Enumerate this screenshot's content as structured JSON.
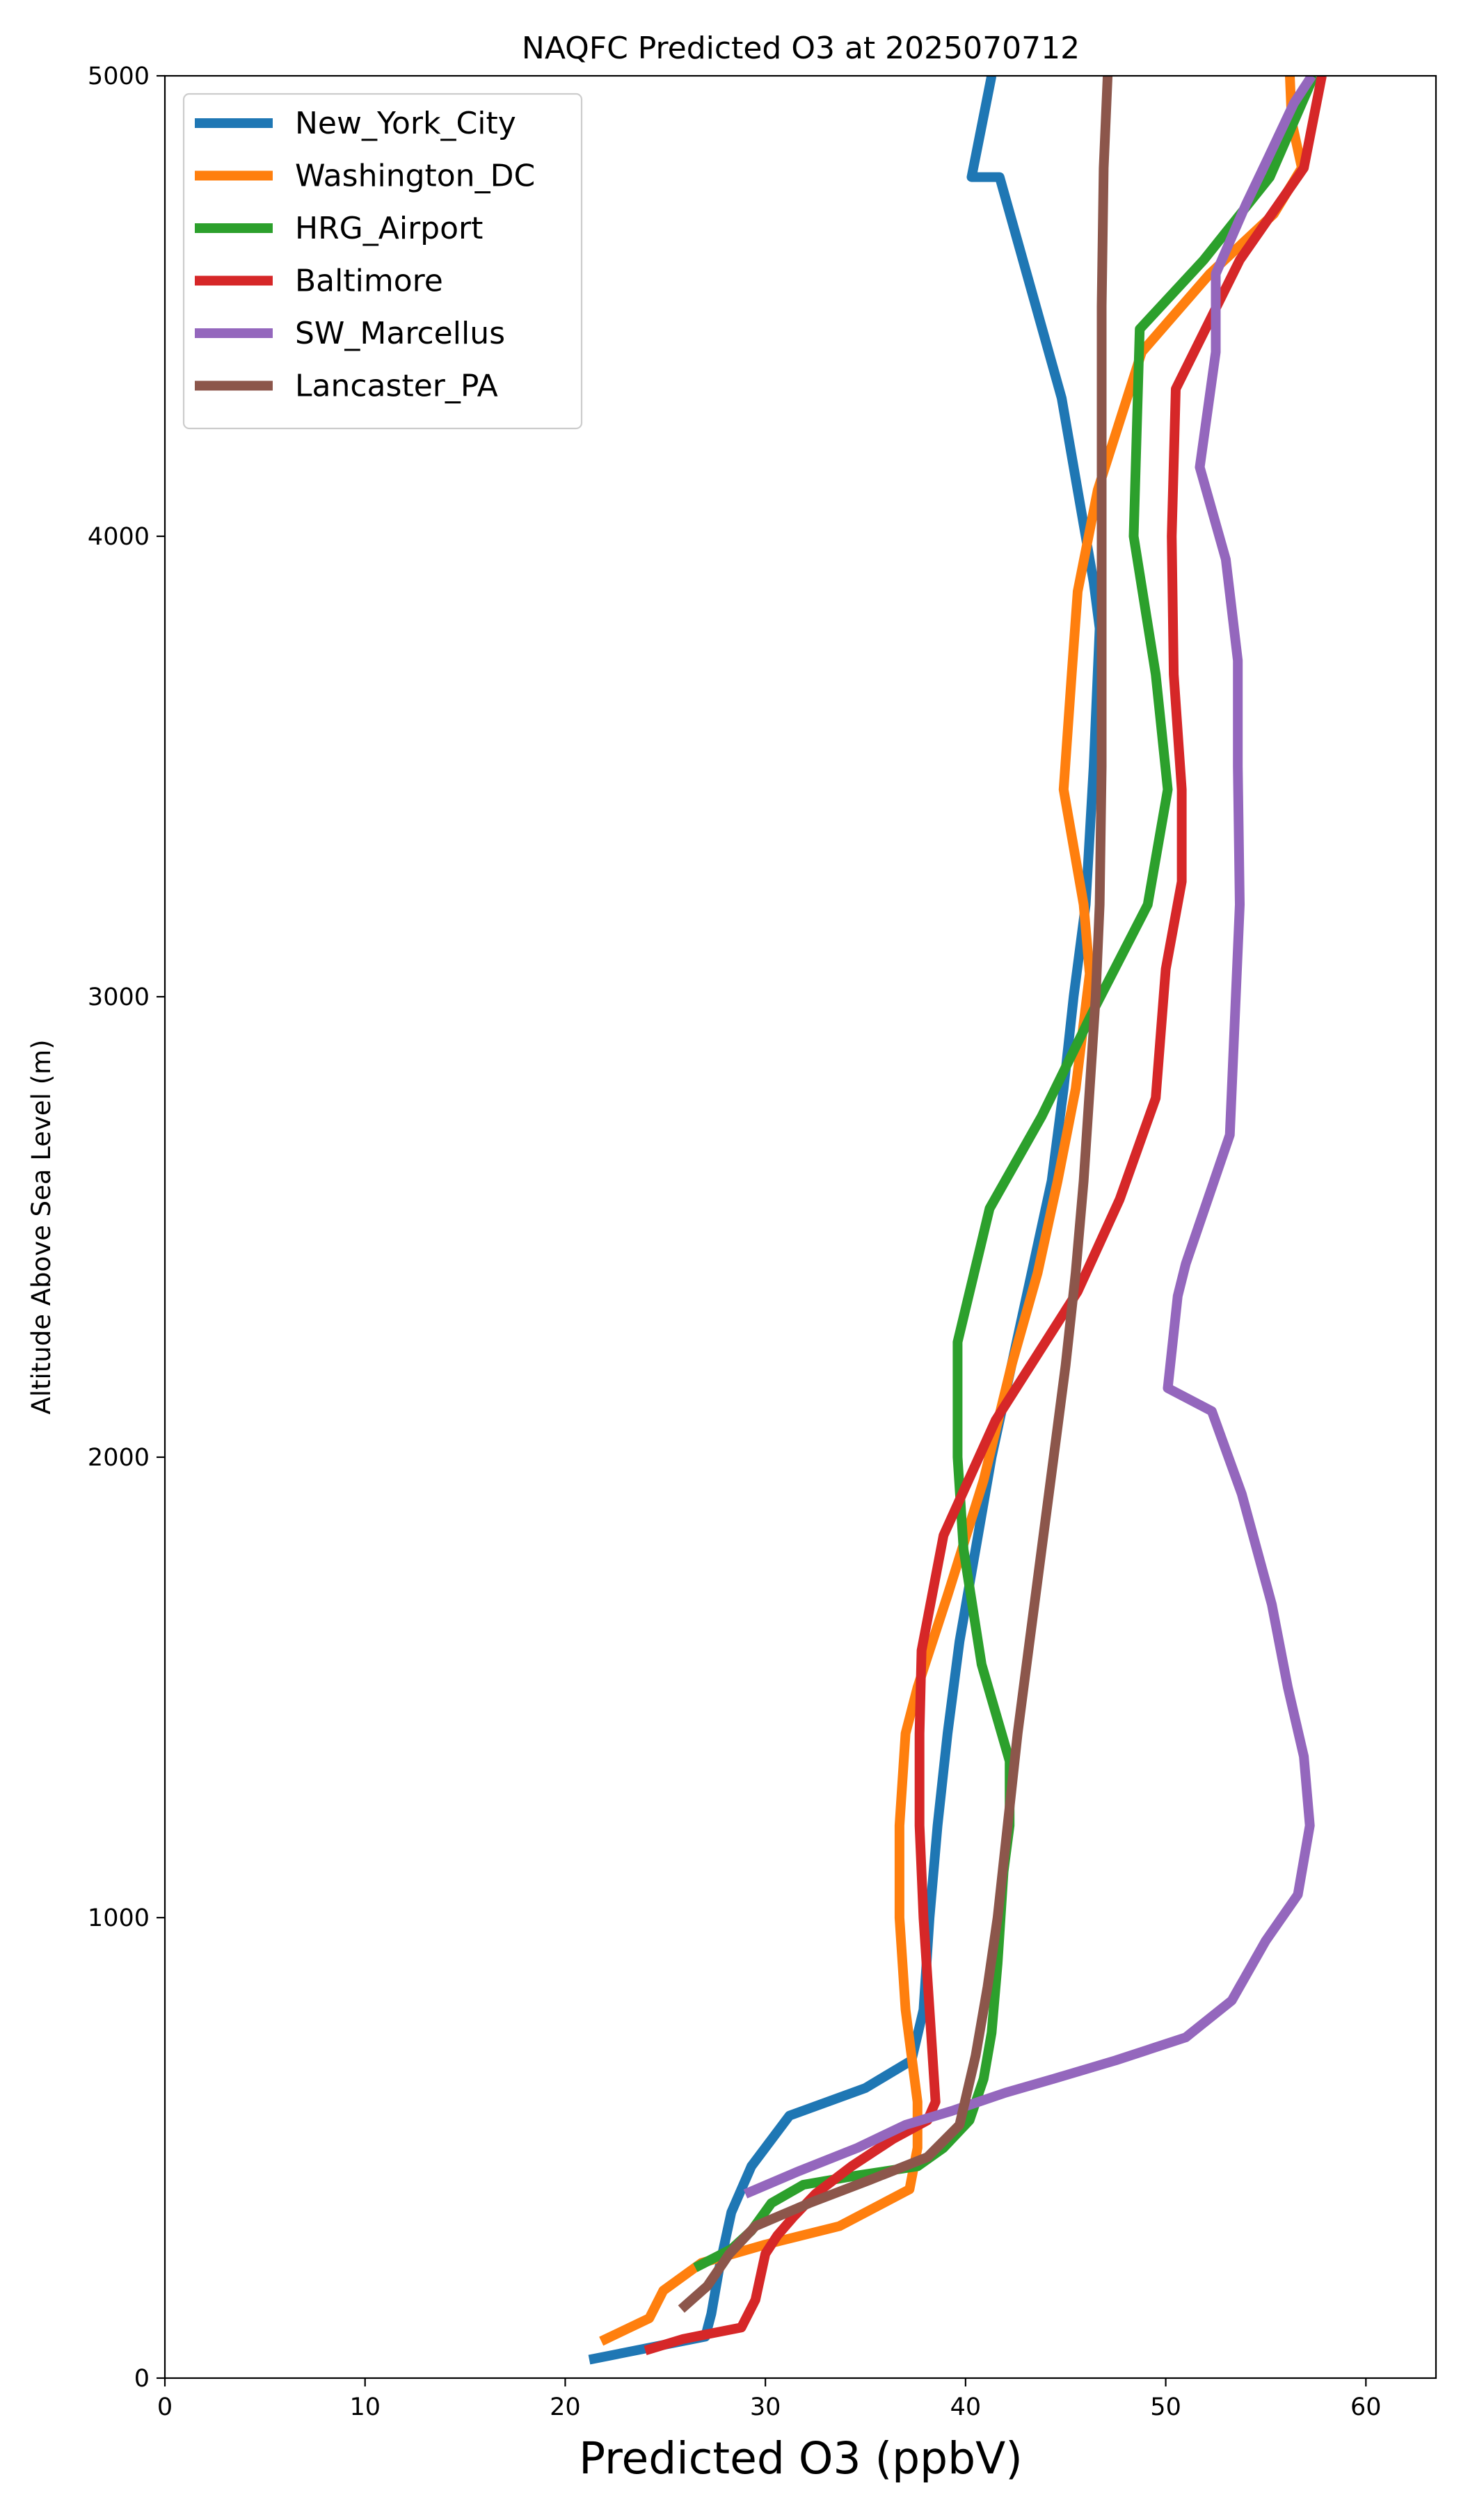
{
  "chart_data": {
    "type": "line",
    "title": "NAQFC Predicted O3 at 2025070712",
    "xlabel": "Predicted O3 (ppbV)",
    "ylabel": "Altitude Above Sea Level (m)",
    "xlim": [
      0,
      63.5
    ],
    "ylim": [
      0,
      5000
    ],
    "x_ticks": [
      0,
      10,
      20,
      30,
      40,
      50,
      60
    ],
    "y_ticks": [
      0,
      1000,
      2000,
      3000,
      4000,
      5000
    ],
    "grid": false,
    "legend_position": "upper left",
    "series": [
      {
        "name": "New_York_City",
        "color": "#1f77b4",
        "points": [
          [
            21.2,
            40
          ],
          [
            27,
            90
          ],
          [
            27.3,
            140
          ],
          [
            27.7,
            240
          ],
          [
            28.3,
            360
          ],
          [
            29.3,
            460
          ],
          [
            31.2,
            570
          ],
          [
            35,
            630
          ],
          [
            37.3,
            690
          ],
          [
            37.9,
            800
          ],
          [
            38.2,
            1000
          ],
          [
            38.6,
            1200
          ],
          [
            39.1,
            1400
          ],
          [
            39.7,
            1600
          ],
          [
            40.5,
            1800
          ],
          [
            41.3,
            2000
          ],
          [
            42.3,
            2200
          ],
          [
            43.3,
            2400
          ],
          [
            44.3,
            2600
          ],
          [
            44.9,
            2800
          ],
          [
            45.4,
            3000
          ],
          [
            46,
            3200
          ],
          [
            46.4,
            3500
          ],
          [
            46.7,
            3800
          ],
          [
            46.4,
            3900
          ],
          [
            44.8,
            4300
          ],
          [
            41.7,
            4780
          ],
          [
            40.3,
            4780
          ],
          [
            41.3,
            5000
          ]
        ]
      },
      {
        "name": "Washington_DC",
        "color": "#ff7f0e",
        "points": [
          [
            21.8,
            80
          ],
          [
            24.2,
            130
          ],
          [
            24.9,
            190
          ],
          [
            26.8,
            250
          ],
          [
            30,
            290
          ],
          [
            33.7,
            330
          ],
          [
            37.2,
            410
          ],
          [
            37.6,
            500
          ],
          [
            37.6,
            600
          ],
          [
            37,
            800
          ],
          [
            36.7,
            1000
          ],
          [
            36.7,
            1200
          ],
          [
            37,
            1400
          ],
          [
            37.6,
            1500
          ],
          [
            39.1,
            1700
          ],
          [
            40.9,
            1950
          ],
          [
            42.3,
            2200
          ],
          [
            43.6,
            2400
          ],
          [
            44.6,
            2600
          ],
          [
            45.5,
            2800
          ],
          [
            46.2,
            3050
          ],
          [
            45.9,
            3200
          ],
          [
            44.9,
            3450
          ],
          [
            45.3,
            3700
          ],
          [
            45.6,
            3880
          ],
          [
            46.6,
            4100
          ],
          [
            48.8,
            4400
          ],
          [
            52.2,
            4570
          ],
          [
            55.4,
            4700
          ],
          [
            56.8,
            4800
          ],
          [
            56.3,
            4900
          ],
          [
            56.2,
            5000
          ]
        ]
      },
      {
        "name": "HRG_Airport",
        "color": "#2ca02c",
        "points": [
          [
            26.5,
            240
          ],
          [
            28.3,
            280
          ],
          [
            29.3,
            320
          ],
          [
            30.3,
            380
          ],
          [
            31.9,
            420
          ],
          [
            34.6,
            440
          ],
          [
            37.6,
            460
          ],
          [
            38.9,
            500
          ],
          [
            40.2,
            560
          ],
          [
            40.9,
            650
          ],
          [
            41.3,
            750
          ],
          [
            41.6,
            900
          ],
          [
            41.9,
            1100
          ],
          [
            42.2,
            1200
          ],
          [
            42.2,
            1340
          ],
          [
            40.8,
            1550
          ],
          [
            39.9,
            1800
          ],
          [
            39.6,
            2000
          ],
          [
            39.6,
            2250
          ],
          [
            41.2,
            2540
          ],
          [
            43.8,
            2740
          ],
          [
            46.5,
            2980
          ],
          [
            49.1,
            3200
          ],
          [
            50.1,
            3450
          ],
          [
            49.5,
            3700
          ],
          [
            48.4,
            4000
          ],
          [
            48.7,
            4450
          ],
          [
            51.9,
            4600
          ],
          [
            55.2,
            4780
          ],
          [
            57.4,
            5000
          ]
        ]
      },
      {
        "name": "Baltimore",
        "color": "#d62728",
        "points": [
          [
            24,
            60
          ],
          [
            25.9,
            85
          ],
          [
            28.8,
            110
          ],
          [
            29.5,
            170
          ],
          [
            30,
            270
          ],
          [
            30.6,
            310
          ],
          [
            31.4,
            350
          ],
          [
            32.5,
            400
          ],
          [
            34.3,
            460
          ],
          [
            36.4,
            520
          ],
          [
            38.1,
            560
          ],
          [
            38.5,
            600
          ],
          [
            38.2,
            800
          ],
          [
            37.9,
            1000
          ],
          [
            37.7,
            1200
          ],
          [
            37.7,
            1400
          ],
          [
            37.8,
            1580
          ],
          [
            38.9,
            1830
          ],
          [
            41.5,
            2080
          ],
          [
            45.6,
            2360
          ],
          [
            47.7,
            2560
          ],
          [
            49.5,
            2780
          ],
          [
            50,
            3060
          ],
          [
            50.8,
            3250
          ],
          [
            50.8,
            3450
          ],
          [
            50.4,
            3700
          ],
          [
            50.3,
            4000
          ],
          [
            50.5,
            4320
          ],
          [
            53.7,
            4600
          ],
          [
            56.9,
            4800
          ],
          [
            57.8,
            5000
          ]
        ]
      },
      {
        "name": "SW_Marcellus",
        "color": "#9467bd",
        "points": [
          [
            29,
            400
          ],
          [
            31.7,
            450
          ],
          [
            34.6,
            500
          ],
          [
            37,
            550
          ],
          [
            39.3,
            580
          ],
          [
            42,
            620
          ],
          [
            44.4,
            650
          ],
          [
            47.5,
            690
          ],
          [
            51,
            740
          ],
          [
            53.3,
            820
          ],
          [
            55,
            950
          ],
          [
            56.6,
            1050
          ],
          [
            57.2,
            1200
          ],
          [
            56.9,
            1350
          ],
          [
            56.1,
            1500
          ],
          [
            55.3,
            1680
          ],
          [
            53.8,
            1920
          ],
          [
            52.3,
            2100
          ],
          [
            50.1,
            2150
          ],
          [
            50.6,
            2350
          ],
          [
            51,
            2420
          ],
          [
            53.2,
            2700
          ],
          [
            53.5,
            3000
          ],
          [
            53.7,
            3200
          ],
          [
            53.6,
            3500
          ],
          [
            53.6,
            3730
          ],
          [
            53,
            3950
          ],
          [
            51.7,
            4150
          ],
          [
            52.5,
            4400
          ],
          [
            52.5,
            4570
          ],
          [
            54,
            4720
          ],
          [
            55.1,
            4820
          ],
          [
            56.4,
            4940
          ],
          [
            57.3,
            5000
          ]
        ]
      },
      {
        "name": "Lancaster_PA",
        "color": "#8c564b",
        "points": [
          [
            25.8,
            150
          ],
          [
            27.1,
            200
          ],
          [
            28.2,
            270
          ],
          [
            29.5,
            330
          ],
          [
            32.2,
            380
          ],
          [
            35.2,
            430
          ],
          [
            38.1,
            480
          ],
          [
            39.7,
            550
          ],
          [
            40.5,
            700
          ],
          [
            41.1,
            850
          ],
          [
            41.6,
            1000
          ],
          [
            42.1,
            1200
          ],
          [
            42.6,
            1400
          ],
          [
            43.2,
            1600
          ],
          [
            43.8,
            1800
          ],
          [
            44.4,
            2000
          ],
          [
            45,
            2200
          ],
          [
            45.5,
            2400
          ],
          [
            45.9,
            2600
          ],
          [
            46.2,
            2800
          ],
          [
            46.5,
            3000
          ],
          [
            46.7,
            3200
          ],
          [
            46.8,
            3500
          ],
          [
            46.8,
            3700
          ],
          [
            46.8,
            3900
          ],
          [
            46.8,
            4200
          ],
          [
            46.8,
            4500
          ],
          [
            46.9,
            4800
          ],
          [
            47.1,
            5000
          ]
        ]
      }
    ]
  }
}
